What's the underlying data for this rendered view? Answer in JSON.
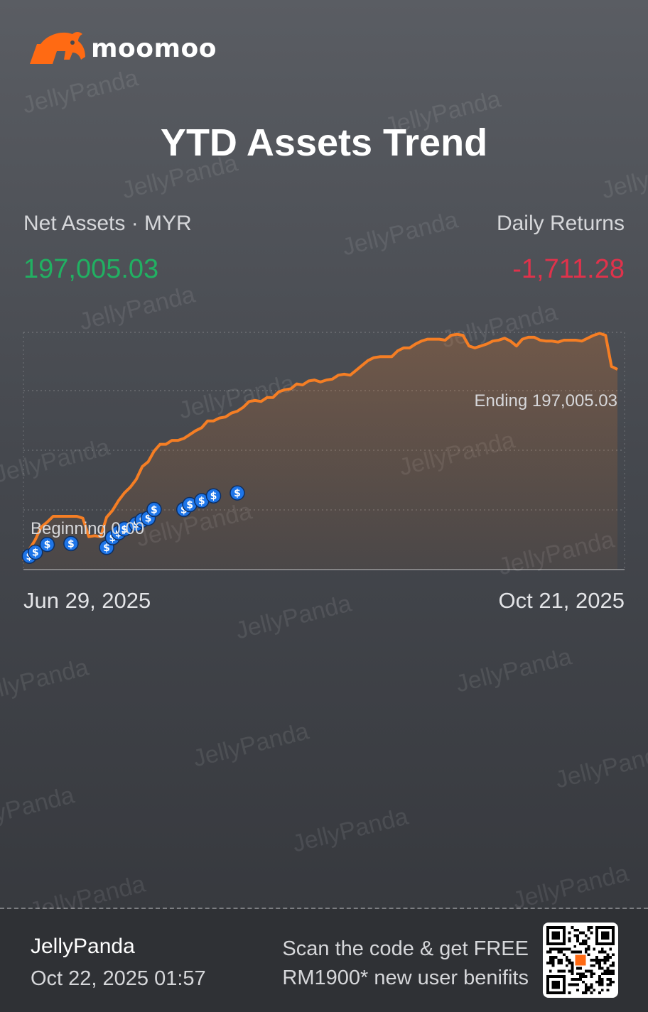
{
  "brand": {
    "name": "moomoo"
  },
  "title": "YTD Assets Trend",
  "summary": {
    "net_label": "Net Assets · MYR",
    "net_value": "197,005.03",
    "returns_label": "Daily Returns",
    "returns_value": "-1,711.28"
  },
  "watermark_text": "JellyPanda",
  "colors": {
    "line": "#f57e24",
    "positive": "#21b062",
    "negative": "#e0324b",
    "marker": "#1e75e8"
  },
  "chart_data": {
    "type": "area",
    "x_start_label": "Jun 29, 2025",
    "x_end_label": "Oct 21, 2025",
    "beginning_label": "Beginning 0.00",
    "ending_label": "Ending 197,005.03",
    "grid": "dashed",
    "y_min": 0,
    "y_max": 235000,
    "values": [
      0,
      12000,
      22000,
      35000,
      40000,
      46000,
      46000,
      46000,
      46000,
      46000,
      44000,
      25000,
      26000,
      25000,
      45000,
      52000,
      62000,
      70000,
      76000,
      84000,
      97000,
      102000,
      113000,
      120000,
      120000,
      124000,
      124000,
      126000,
      130000,
      134000,
      137000,
      144000,
      144000,
      147000,
      148000,
      152000,
      154000,
      158000,
      164000,
      165000,
      164000,
      168000,
      168000,
      174000,
      176000,
      177000,
      182000,
      181000,
      185000,
      186000,
      184000,
      186000,
      187000,
      191000,
      192000,
      191000,
      196000,
      201000,
      206000,
      209000,
      210000,
      210000,
      210000,
      216000,
      219000,
      219000,
      223000,
      226000,
      228000,
      228000,
      228000,
      227000,
      232000,
      233000,
      232000,
      221000,
      219000,
      221000,
      223000,
      226000,
      227000,
      229000,
      226000,
      221000,
      228000,
      230000,
      230000,
      227000,
      226000,
      226000,
      225000,
      227000,
      227000,
      227000,
      226000,
      229000,
      232000,
      234000,
      232000,
      200000,
      197005.03
    ],
    "deposit_markers": [
      {
        "i": 1,
        "v": 5000
      },
      {
        "i": 2,
        "v": 9000
      },
      {
        "i": 4,
        "v": 17000
      },
      {
        "i": 8,
        "v": 18000
      },
      {
        "i": 14,
        "v": 14000
      },
      {
        "i": 15,
        "v": 24000
      },
      {
        "i": 16,
        "v": 29000
      },
      {
        "i": 17,
        "v": 33000
      },
      {
        "i": 19,
        "v": 38000
      },
      {
        "i": 20,
        "v": 42000
      },
      {
        "i": 21,
        "v": 44000
      },
      {
        "i": 22,
        "v": 53000
      },
      {
        "i": 27,
        "v": 53000
      },
      {
        "i": 28,
        "v": 58000
      },
      {
        "i": 30,
        "v": 62000
      },
      {
        "i": 32,
        "v": 67000
      },
      {
        "i": 36,
        "v": 70000
      }
    ]
  },
  "footer": {
    "user": "JellyPanda",
    "timestamp": "Oct 22, 2025 01:57",
    "promo_line1": "Scan the code & get FREE",
    "promo_line2": "RM1900* new user benifits"
  }
}
